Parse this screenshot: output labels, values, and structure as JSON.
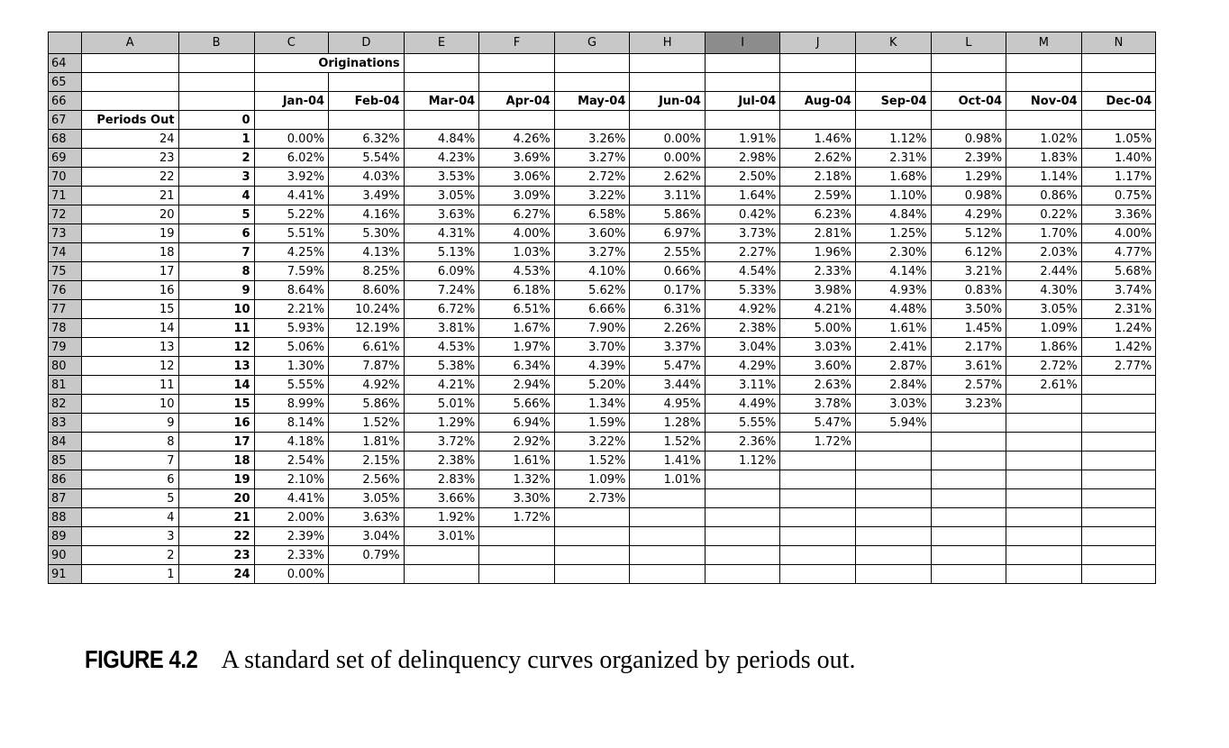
{
  "sheet": {
    "column_headers": [
      "A",
      "B",
      "C",
      "D",
      "E",
      "F",
      "G",
      "H",
      "I",
      "J",
      "K",
      "L",
      "M",
      "N"
    ],
    "selected_column": "I",
    "title_row": {
      "row": "64",
      "label": "Originations"
    },
    "empty_row": {
      "row": "65"
    },
    "month_row": {
      "row": "66",
      "months": [
        "Jan-04",
        "Feb-04",
        "Mar-04",
        "Apr-04",
        "May-04",
        "Jun-04",
        "Jul-04",
        "Aug-04",
        "Sep-04",
        "Oct-04",
        "Nov-04",
        "Dec-04"
      ]
    },
    "periods_row": {
      "row": "67",
      "label": "Periods Out",
      "value": "0"
    },
    "rows": [
      {
        "row": "68",
        "a": "24",
        "b": "1",
        "vals": [
          "0.00%",
          "6.32%",
          "4.84%",
          "4.26%",
          "3.26%",
          "0.00%",
          "1.91%",
          "1.46%",
          "1.12%",
          "0.98%",
          "1.02%",
          "1.05%"
        ]
      },
      {
        "row": "69",
        "a": "23",
        "b": "2",
        "vals": [
          "6.02%",
          "5.54%",
          "4.23%",
          "3.69%",
          "3.27%",
          "0.00%",
          "2.98%",
          "2.62%",
          "2.31%",
          "2.39%",
          "1.83%",
          "1.40%"
        ]
      },
      {
        "row": "70",
        "a": "22",
        "b": "3",
        "vals": [
          "3.92%",
          "4.03%",
          "3.53%",
          "3.06%",
          "2.72%",
          "2.62%",
          "2.50%",
          "2.18%",
          "1.68%",
          "1.29%",
          "1.14%",
          "1.17%"
        ]
      },
      {
        "row": "71",
        "a": "21",
        "b": "4",
        "vals": [
          "4.41%",
          "3.49%",
          "3.05%",
          "3.09%",
          "3.22%",
          "3.11%",
          "1.64%",
          "2.59%",
          "1.10%",
          "0.98%",
          "0.86%",
          "0.75%"
        ]
      },
      {
        "row": "72",
        "a": "20",
        "b": "5",
        "vals": [
          "5.22%",
          "4.16%",
          "3.63%",
          "6.27%",
          "6.58%",
          "5.86%",
          "0.42%",
          "6.23%",
          "4.84%",
          "4.29%",
          "0.22%",
          "3.36%"
        ]
      },
      {
        "row": "73",
        "a": "19",
        "b": "6",
        "vals": [
          "5.51%",
          "5.30%",
          "4.31%",
          "4.00%",
          "3.60%",
          "6.97%",
          "3.73%",
          "2.81%",
          "1.25%",
          "5.12%",
          "1.70%",
          "4.00%"
        ]
      },
      {
        "row": "74",
        "a": "18",
        "b": "7",
        "vals": [
          "4.25%",
          "4.13%",
          "5.13%",
          "1.03%",
          "3.27%",
          "2.55%",
          "2.27%",
          "1.96%",
          "2.30%",
          "6.12%",
          "2.03%",
          "4.77%"
        ]
      },
      {
        "row": "75",
        "a": "17",
        "b": "8",
        "vals": [
          "7.59%",
          "8.25%",
          "6.09%",
          "4.53%",
          "4.10%",
          "0.66%",
          "4.54%",
          "2.33%",
          "4.14%",
          "3.21%",
          "2.44%",
          "5.68%"
        ]
      },
      {
        "row": "76",
        "a": "16",
        "b": "9",
        "vals": [
          "8.64%",
          "8.60%",
          "7.24%",
          "6.18%",
          "5.62%",
          "0.17%",
          "5.33%",
          "3.98%",
          "4.93%",
          "0.83%",
          "4.30%",
          "3.74%"
        ]
      },
      {
        "row": "77",
        "a": "15",
        "b": "10",
        "vals": [
          "2.21%",
          "10.24%",
          "6.72%",
          "6.51%",
          "6.66%",
          "6.31%",
          "4.92%",
          "4.21%",
          "4.48%",
          "3.50%",
          "3.05%",
          "2.31%"
        ]
      },
      {
        "row": "78",
        "a": "14",
        "b": "11",
        "vals": [
          "5.93%",
          "12.19%",
          "3.81%",
          "1.67%",
          "7.90%",
          "2.26%",
          "2.38%",
          "5.00%",
          "1.61%",
          "1.45%",
          "1.09%",
          "1.24%"
        ]
      },
      {
        "row": "79",
        "a": "13",
        "b": "12",
        "vals": [
          "5.06%",
          "6.61%",
          "4.53%",
          "1.97%",
          "3.70%",
          "3.37%",
          "3.04%",
          "3.03%",
          "2.41%",
          "2.17%",
          "1.86%",
          "1.42%"
        ]
      },
      {
        "row": "80",
        "a": "12",
        "b": "13",
        "vals": [
          "1.30%",
          "7.87%",
          "5.38%",
          "6.34%",
          "4.39%",
          "5.47%",
          "4.29%",
          "3.60%",
          "2.87%",
          "3.61%",
          "2.72%",
          "2.77%"
        ]
      },
      {
        "row": "81",
        "a": "11",
        "b": "14",
        "vals": [
          "5.55%",
          "4.92%",
          "4.21%",
          "2.94%",
          "5.20%",
          "3.44%",
          "3.11%",
          "2.63%",
          "2.84%",
          "2.57%",
          "2.61%",
          ""
        ]
      },
      {
        "row": "82",
        "a": "10",
        "b": "15",
        "vals": [
          "8.99%",
          "5.86%",
          "5.01%",
          "5.66%",
          "1.34%",
          "4.95%",
          "4.49%",
          "3.78%",
          "3.03%",
          "3.23%",
          "",
          ""
        ]
      },
      {
        "row": "83",
        "a": "9",
        "b": "16",
        "vals": [
          "8.14%",
          "1.52%",
          "1.29%",
          "6.94%",
          "1.59%",
          "1.28%",
          "5.55%",
          "5.47%",
          "5.94%",
          "",
          "",
          ""
        ]
      },
      {
        "row": "84",
        "a": "8",
        "b": "17",
        "vals": [
          "4.18%",
          "1.81%",
          "3.72%",
          "2.92%",
          "3.22%",
          "1.52%",
          "2.36%",
          "1.72%",
          "",
          "",
          "",
          ""
        ]
      },
      {
        "row": "85",
        "a": "7",
        "b": "18",
        "vals": [
          "2.54%",
          "2.15%",
          "2.38%",
          "1.61%",
          "1.52%",
          "1.41%",
          "1.12%",
          "",
          "",
          "",
          "",
          ""
        ]
      },
      {
        "row": "86",
        "a": "6",
        "b": "19",
        "vals": [
          "2.10%",
          "2.56%",
          "2.83%",
          "1.32%",
          "1.09%",
          "1.01%",
          "",
          "",
          "",
          "",
          "",
          ""
        ]
      },
      {
        "row": "87",
        "a": "5",
        "b": "20",
        "vals": [
          "4.41%",
          "3.05%",
          "3.66%",
          "3.30%",
          "2.73%",
          "",
          "",
          "",
          "",
          "",
          "",
          ""
        ]
      },
      {
        "row": "88",
        "a": "4",
        "b": "21",
        "vals": [
          "2.00%",
          "3.63%",
          "1.92%",
          "1.72%",
          "",
          "",
          "",
          "",
          "",
          "",
          "",
          ""
        ]
      },
      {
        "row": "89",
        "a": "3",
        "b": "22",
        "vals": [
          "2.39%",
          "3.04%",
          "3.01%",
          "",
          "",
          "",
          "",
          "",
          "",
          "",
          "",
          ""
        ]
      },
      {
        "row": "90",
        "a": "2",
        "b": "23",
        "vals": [
          "2.33%",
          "0.79%",
          "",
          "",
          "",
          "",
          "",
          "",
          "",
          "",
          "",
          ""
        ]
      },
      {
        "row": "91",
        "a": "1",
        "b": "24",
        "vals": [
          "0.00%",
          "",
          "",
          "",
          "",
          "",
          "",
          "",
          "",
          "",
          "",
          ""
        ]
      }
    ]
  },
  "caption": {
    "figure_label": "FIGURE 4.2",
    "text": "A standard set of delinquency curves organized by periods out."
  },
  "colors": {
    "header_bg": "#c8c8c8",
    "selected_header_bg": "#8d8d8d",
    "cell_bg": "#ffffff",
    "grid": "#000000"
  }
}
